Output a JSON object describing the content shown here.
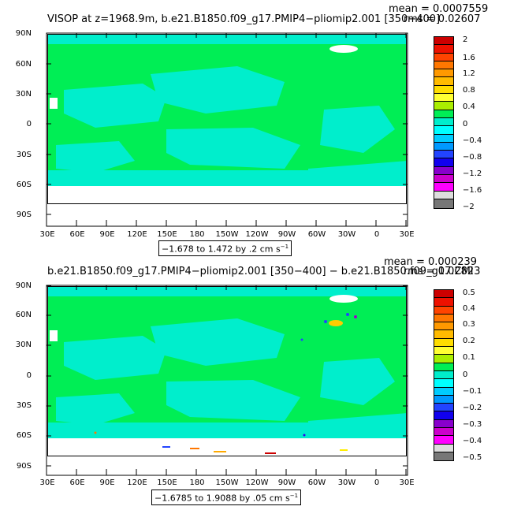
{
  "panel1": {
    "title": "VISOP at z=1968.9m, b.e21.B1850.f09_g17.PMIP4−pliomip2.001 [350−400]",
    "mean": "mean = 0.0007559",
    "rms": "rms = 0.02607",
    "range": "−1.678 to 1.472 by .2 cm s",
    "range_exp": "−1",
    "colorbar_labels": [
      "2",
      "1.6",
      "1.2",
      "0.8",
      "0.4",
      "0",
      "−0.4",
      "−0.8",
      "−1.2",
      "−1.6",
      "−2"
    ]
  },
  "panel2": {
    "title": "b.e21.B1850.f09_g17.PMIP4−pliomip2.001 [350−400] − b.e21.B1850.f09_g17.CMI",
    "mean": "mean = 0.000239",
    "rms": "rms = 0.02823",
    "range": "−1.6785 to 1.9088 by .05 cm s",
    "range_exp": "−1",
    "colorbar_labels": [
      "0.5",
      "0.4",
      "0.3",
      "0.2",
      "0.1",
      "0",
      "−0.1",
      "−0.2",
      "−0.3",
      "−0.4",
      "−0.5"
    ]
  },
  "lat_labels": [
    "90N",
    "60N",
    "30N",
    "0",
    "30S",
    "60S",
    "90S"
  ],
  "lon_labels": [
    "30E",
    "60E",
    "90E",
    "120E",
    "150E",
    "180",
    "150W",
    "120W",
    "90W",
    "60W",
    "30W",
    "0",
    "30E"
  ],
  "colors": {
    "ocean_zero": "#00ee55",
    "neg_small": "#00eecc",
    "land_missing": "#ffffff",
    "colorbar": [
      "#cc0000",
      "#ee1100",
      "#ff4400",
      "#ff7700",
      "#ffaa00",
      "#ffee00",
      "#00ee55",
      "#00eecc",
      "#00ffff",
      "#00ccff",
      "#0099ff",
      "#2244ff",
      "#3300ee",
      "#9900cc",
      "#ff00ff",
      "#dddddd",
      "#777777"
    ]
  }
}
